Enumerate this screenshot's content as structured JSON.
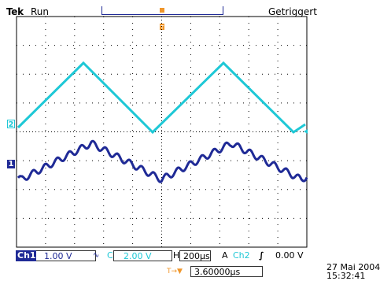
{
  "header": {
    "brand": "Tek",
    "acquisition_state": "Run",
    "trigger_status": "Getriggert"
  },
  "channels": [
    {
      "id": "1",
      "label": "Ch1",
      "scale": "1.00 V",
      "coupling_symbol": "∿",
      "color": "#1f2a96"
    },
    {
      "id": "2",
      "label": "Ch2",
      "scale": "2.00 V",
      "color": "#1ec8d6"
    }
  ],
  "horizontal": {
    "label": "H",
    "scale": "200µs"
  },
  "trigger": {
    "mode": "A",
    "source": "Ch2",
    "slope_symbol": "∫",
    "level": "0.00 V",
    "marker_color": "#f0962a"
  },
  "horizontal_offset": {
    "marker": "T→▼",
    "value": "3.60000µs"
  },
  "timestamp": {
    "date": "27 Mai  2004",
    "time": "15:32:41"
  },
  "colors": {
    "grid": "#000000",
    "ch1": "#1f2a96",
    "ch2": "#1ec8d6",
    "trigger": "#f0962a"
  }
}
